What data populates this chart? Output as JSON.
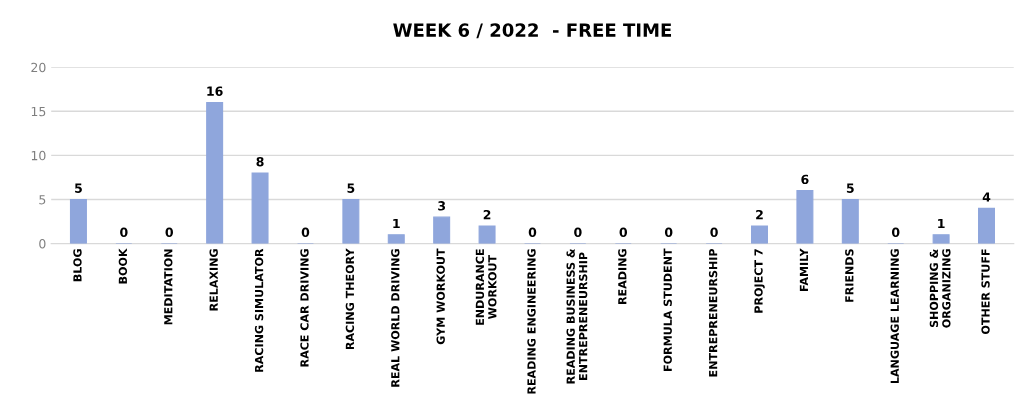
{
  "chart_data": {
    "type": "bar",
    "title": "WEEK 6 / 2022  - FREE TIME",
    "categories": [
      "BLOG",
      "BOOK",
      "MEDITATION",
      "RELAXING",
      "RACING SIMULATOR",
      "RACE CAR DRIVING",
      "RACING THEORY",
      "REAL WORLD DRIVING",
      "GYM WORKOUT",
      "ENDURANCE\nWORKOUT",
      "READING ENGINEERING",
      "READING BUSINESS &\nENTREPRENEURSHIP",
      "READING",
      "FORMULA STUDENT",
      "ENTREPRENEURSHIP",
      "PROJECT 7",
      "FAMILY",
      "FRIENDS",
      "LANGUAGE LEARNING",
      "SHOPPING &\nORGANIZING",
      "OTHER STUFF"
    ],
    "values": [
      5,
      0,
      0,
      16,
      8,
      0,
      5,
      1,
      3,
      2,
      0,
      0,
      0,
      0,
      0,
      2,
      6,
      5,
      0,
      1,
      4
    ],
    "color": "#8fa6dc",
    "ylim": [
      0,
      20
    ],
    "yticks": [
      0,
      5,
      10,
      15,
      20
    ],
    "grid": "y",
    "data_labels": true
  }
}
